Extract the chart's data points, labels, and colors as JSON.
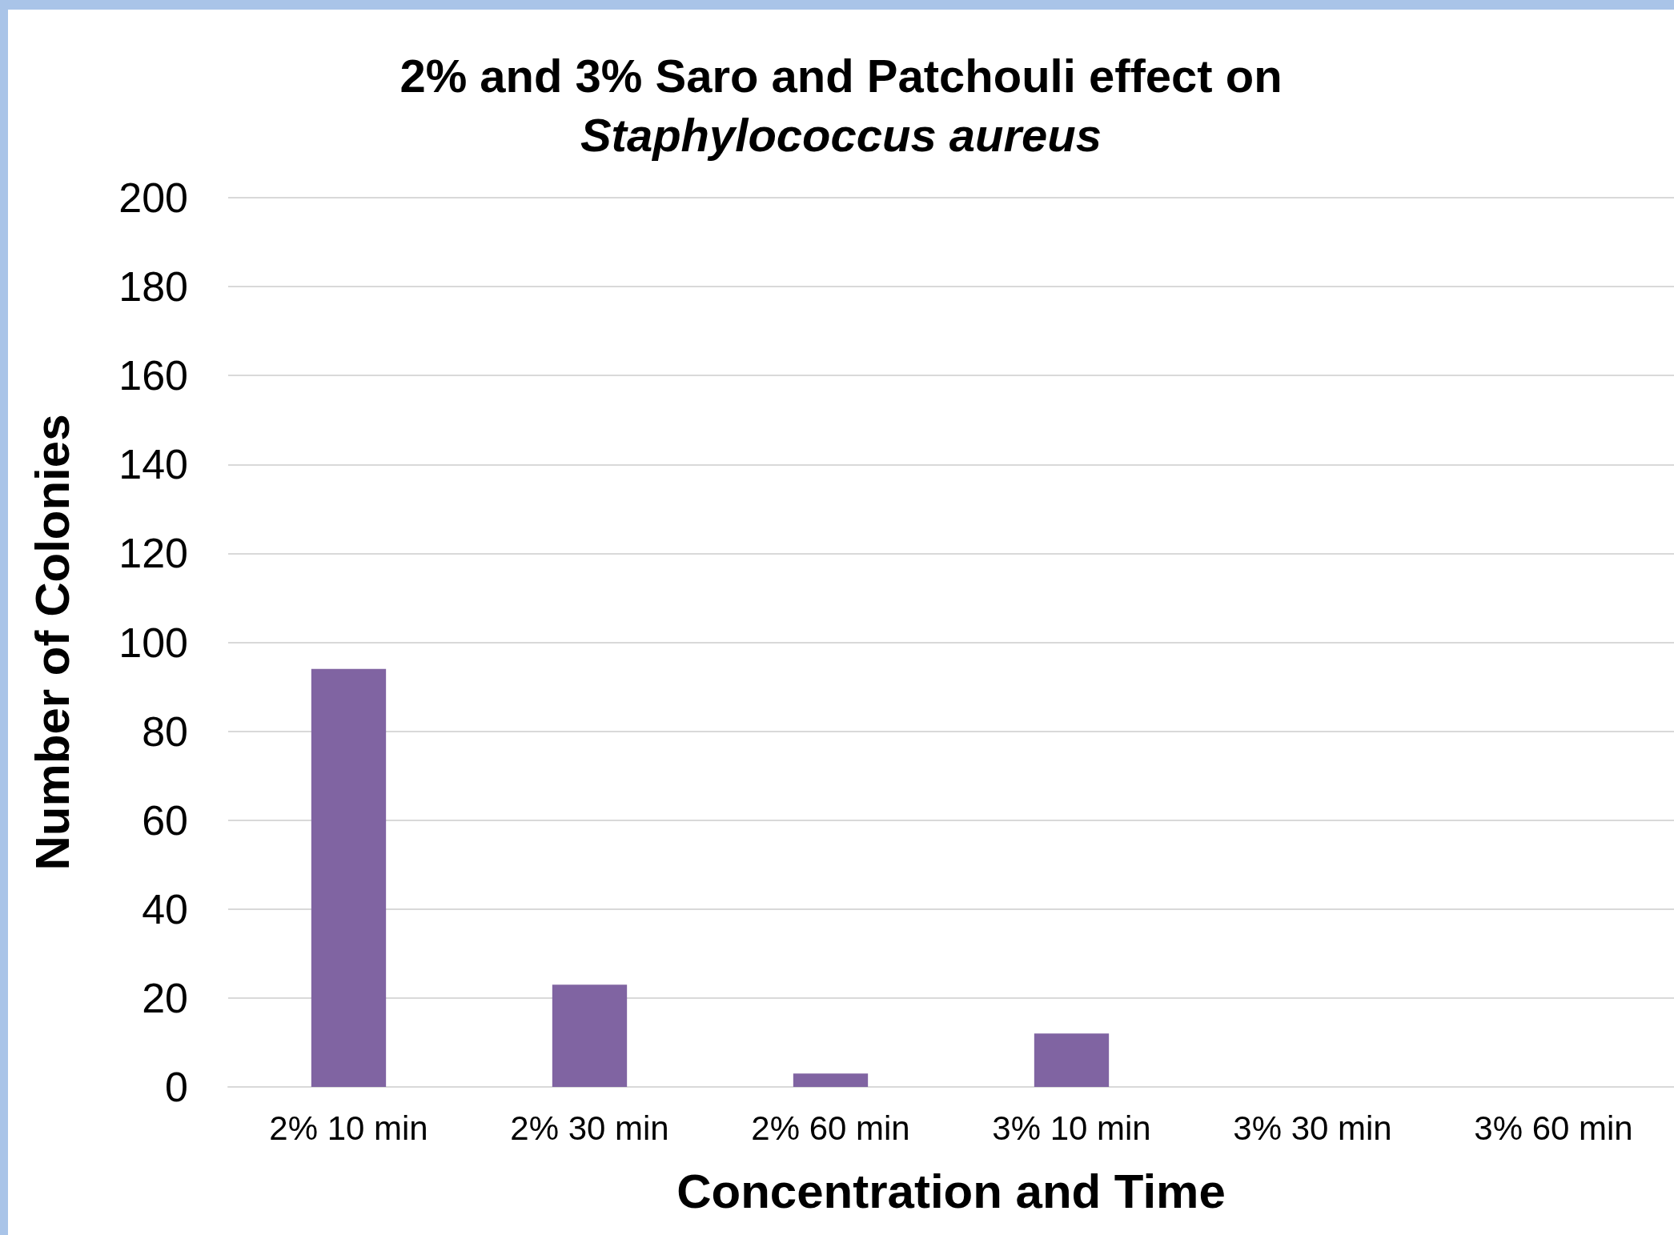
{
  "chart_data": {
    "type": "bar",
    "title": "2% and 3% Saro and Patchouli effect on\nStaphylococcus aureus",
    "xlabel": "Concentration and Time",
    "ylabel": "Number of Colonies",
    "categories": [
      "2% 10 min",
      "2% 30 min",
      "2% 60 min",
      "3% 10 min",
      "3% 30 min",
      "3% 60 min"
    ],
    "values": [
      94,
      23,
      3,
      12,
      0,
      0
    ],
    "color": "#8064a2",
    "ylim": [
      0,
      200
    ],
    "yticks": [
      0,
      20,
      40,
      60,
      80,
      100,
      120,
      140,
      160,
      180,
      200
    ],
    "grid": "y"
  }
}
